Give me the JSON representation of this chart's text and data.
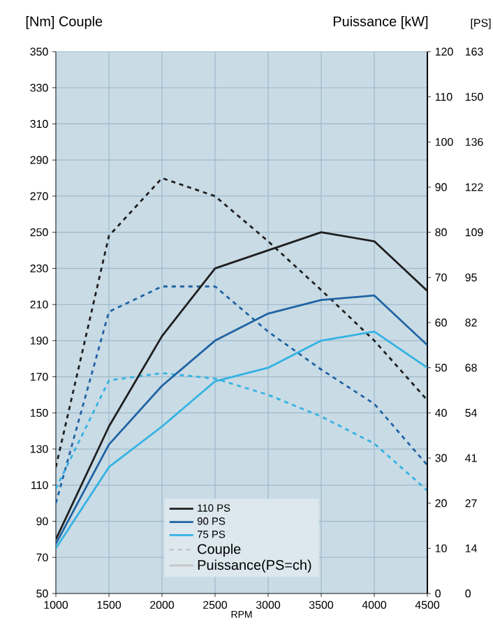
{
  "chart_data": {
    "type": "line",
    "xlabel": "RPM",
    "ylabel": "[Nm] Couple",
    "y2label": "Puissance [kW]",
    "y3label": "[PS]",
    "x": [
      1000,
      1500,
      2000,
      2500,
      3000,
      3500,
      4000,
      4500
    ],
    "series": [
      {
        "name": "110 PS",
        "color": "#1e1e1e",
        "axis": "y2",
        "line_style": "solid",
        "values": [
          12,
          37,
          57,
          72,
          76,
          80,
          78,
          67
        ]
      },
      {
        "name": "90 PS",
        "color": "#1f63a3",
        "axis": "y2",
        "line_style": "solid",
        "values": [
          11,
          33,
          46,
          56,
          62,
          65,
          66,
          55
        ]
      },
      {
        "name": "75 PS",
        "color": "#33b2e3",
        "axis": "y2",
        "line_style": "solid",
        "values": [
          10,
          28,
          37,
          47,
          50,
          56,
          58,
          50
        ]
      },
      {
        "color": "#1e1e1e",
        "line_style": "dashed",
        "values": [
          120,
          248,
          280,
          270,
          245,
          218,
          190,
          157
        ]
      },
      {
        "color": "#1f63a3",
        "line_style": "dashed",
        "values": [
          100,
          206,
          220,
          220,
          195,
          174,
          155,
          121
        ]
      },
      {
        "color": "#33b2e3",
        "line_style": "dashed",
        "values": [
          108,
          168,
          172,
          169,
          160,
          148,
          133,
          107
        ]
      }
    ],
    "annotations": [
      "Couple",
      "Puissance(PS=ch)"
    ],
    "xlim": [
      1000,
      4500
    ],
    "xticks": [
      1000,
      1500,
      2000,
      2500,
      3000,
      3500,
      4000,
      4500
    ],
    "ylim": [
      50,
      350
    ],
    "yticks": [
      50,
      70,
      90,
      110,
      130,
      150,
      170,
      190,
      210,
      230,
      250,
      270,
      290,
      310,
      330,
      350
    ],
    "y2lim": [
      0,
      120
    ],
    "y2ticks": [
      0,
      10,
      20,
      30,
      40,
      50,
      60,
      70,
      80,
      90,
      100,
      110,
      120
    ],
    "y3lim": [
      0,
      163.2
    ],
    "y3ticks": [
      {
        "value": 0,
        "label": "0"
      },
      {
        "value": 13.6,
        "label": "14"
      },
      {
        "value": 27.2,
        "label": "27"
      },
      {
        "value": 40.8,
        "label": "41"
      },
      {
        "value": 54.4,
        "label": "54"
      },
      {
        "value": 68,
        "label": "68"
      },
      {
        "value": 81.6,
        "label": "82"
      },
      {
        "value": 95.2,
        "label": "95"
      },
      {
        "value": 108.8,
        "label": "109"
      },
      {
        "value": 122.4,
        "label": "122"
      },
      {
        "value": 136,
        "label": "136"
      },
      {
        "value": 149.6,
        "label": "150"
      },
      {
        "value": 163.2,
        "label": "163"
      }
    ],
    "grid": true,
    "legend": "bottom",
    "marker": "none"
  }
}
